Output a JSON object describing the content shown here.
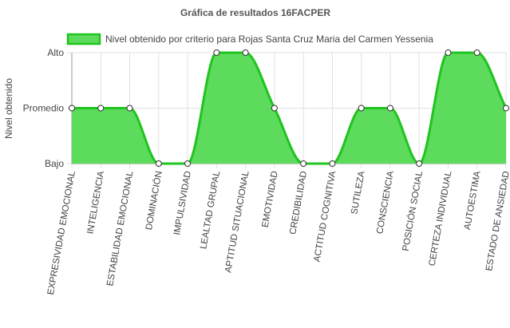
{
  "chart_data": {
    "type": "area",
    "title": "Gráfica de resultados 16FACPER",
    "ylabel": "Nivel obtenido",
    "xlabel": "",
    "levels": [
      "Bajo",
      "Promedio",
      "Alto"
    ],
    "ylim": [
      0,
      2
    ],
    "grid": true,
    "legend_position": "top",
    "categories": [
      "EXPRESIVIDAD EMOCIONAL",
      "INTELIGENCIA",
      "ESTABILIDAD EMOCIONAL",
      "DOMINACIÓN",
      "IMPULSIVIDAD",
      "LEALTAD GRUPAL",
      "APTITUD SITUACIONAL",
      "EMOTIVIDAD",
      "CREDIBILIDAD",
      "ACTITUD COGNITIVA",
      "SUTILEZA",
      "CONSCIENCIA",
      "POSICIÓN SOCIAL",
      "CERTEZA INDIVIDUAL",
      "AUTOESTIMA",
      "ESTADO DE ANSIEDAD"
    ],
    "series": [
      {
        "name": "Nivel obtenido por criterio para Rojas Santa Cruz Maria del Carmen Yessenia",
        "values": [
          "Promedio",
          "Promedio",
          "Promedio",
          "Bajo",
          "Bajo",
          "Alto",
          "Alto",
          "Promedio",
          "Bajo",
          "Bajo",
          "Promedio",
          "Promedio",
          "Bajo",
          "Alto",
          "Alto",
          "Promedio"
        ]
      }
    ],
    "colors": {
      "fill": "#5cdb5c",
      "line": "#1fc41f",
      "grid": "#e0e0e0",
      "axis": "#999999",
      "point_fill": "#ffffff",
      "point_stroke": "#333333"
    }
  }
}
